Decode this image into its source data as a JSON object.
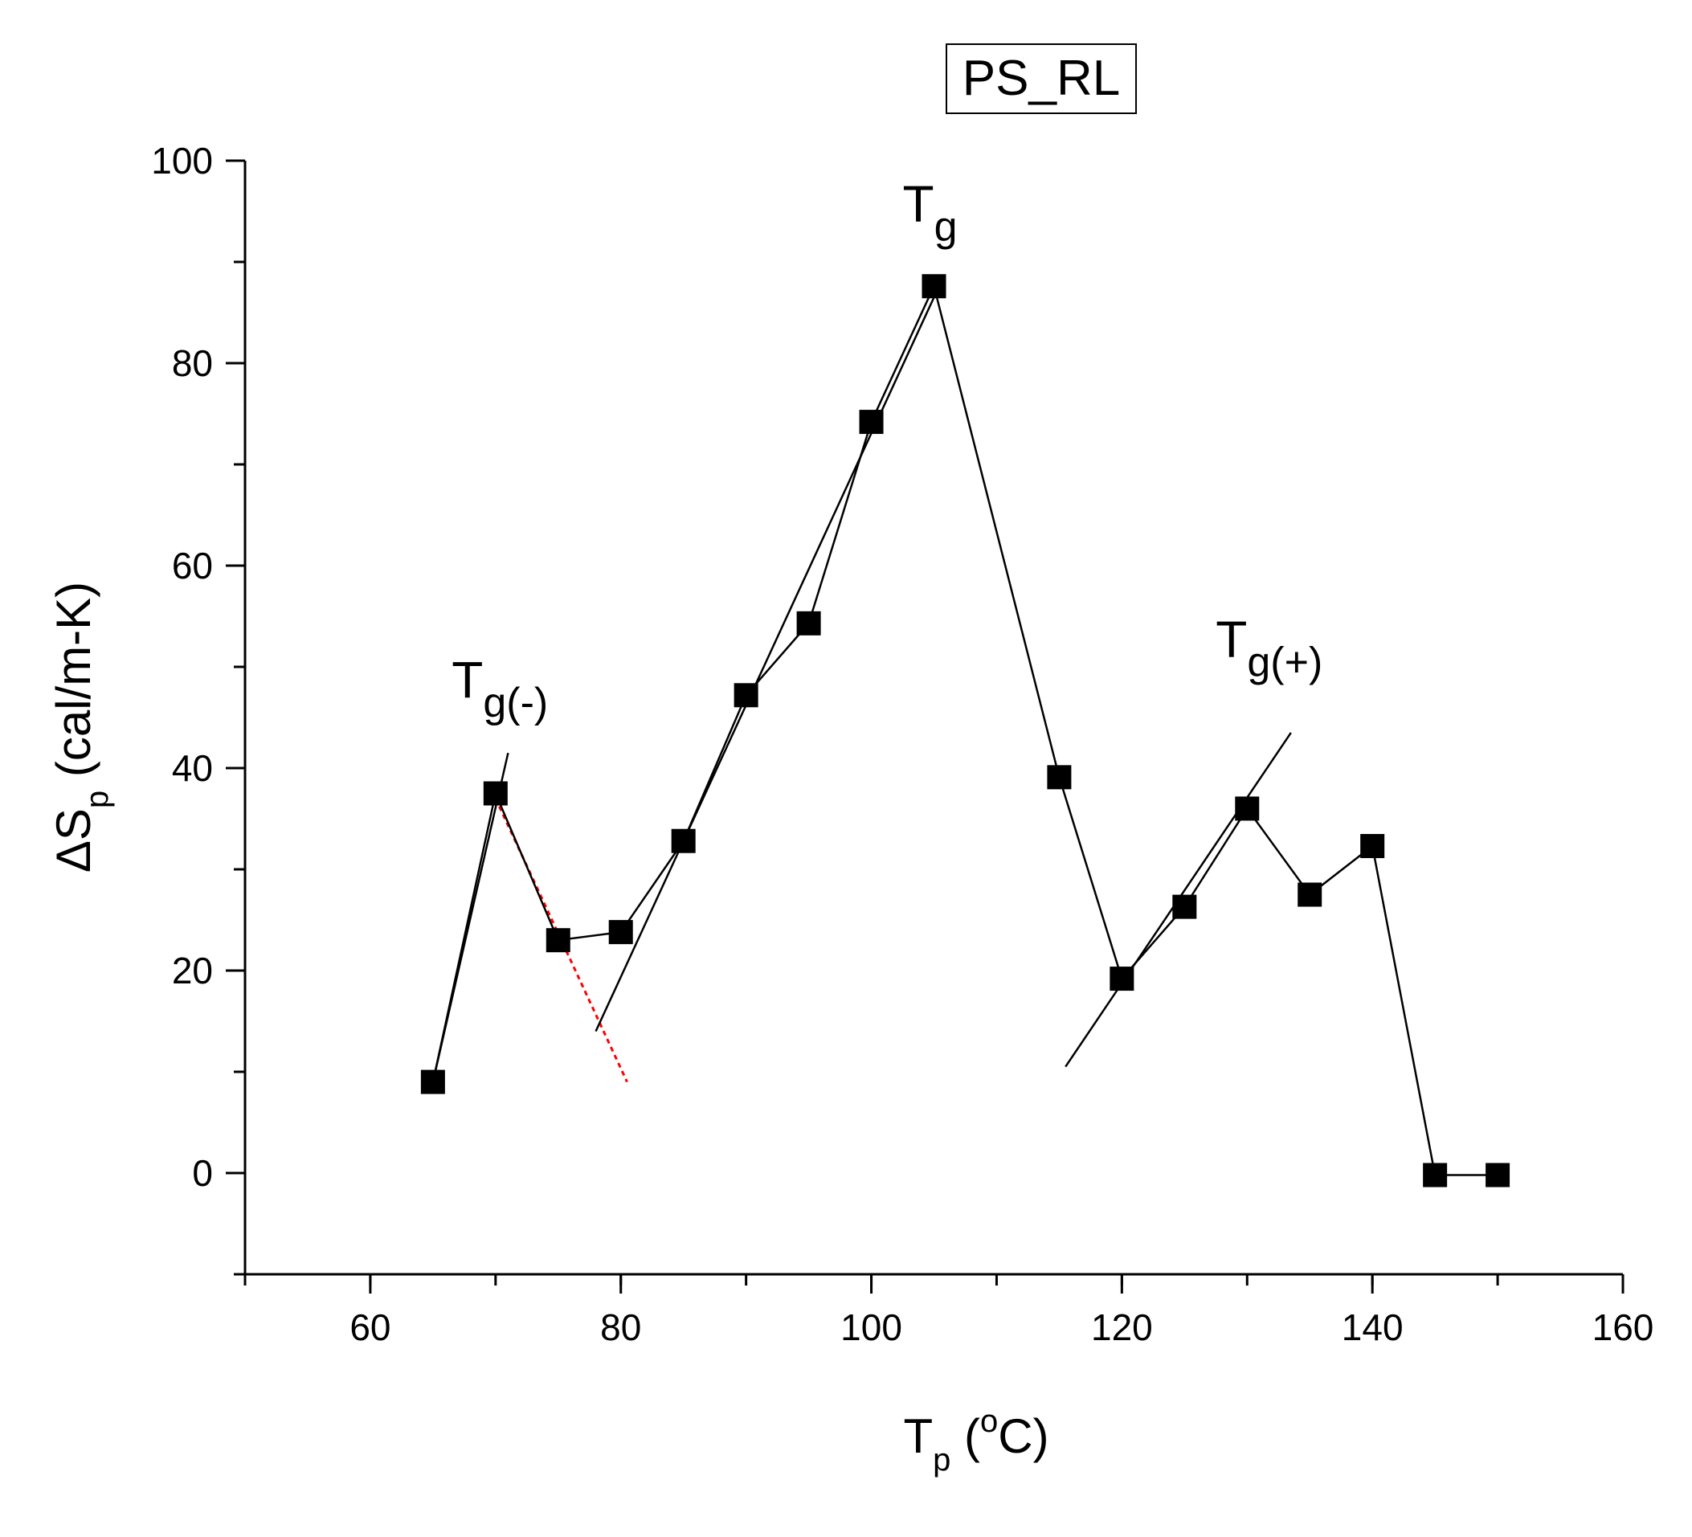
{
  "chart_data": {
    "type": "line",
    "title": "",
    "legend": {
      "label": "PS_RL",
      "position": "top-center"
    },
    "xaxis": {
      "label_main": "T",
      "label_sub": "p",
      "label_mid": " (",
      "label_sup": "o",
      "label_end": "C)",
      "range": [
        50,
        160
      ],
      "ticks": [
        60,
        80,
        100,
        120,
        140,
        160
      ],
      "tick_labels": [
        "60",
        "80",
        "100",
        "120",
        "140",
        "160"
      ],
      "minor_step": 10
    },
    "yaxis": {
      "label_main": "ΔS",
      "label_sub": "p",
      "label_end": " (cal/m-K)",
      "range": [
        -10,
        100
      ],
      "ticks": [
        0,
        20,
        40,
        60,
        80,
        100
      ],
      "tick_labels": [
        "0",
        "20",
        "40",
        "60",
        "80",
        "100"
      ],
      "minor_step": 10
    },
    "grid": false,
    "series": [
      {
        "marker": "square",
        "color": "#000000",
        "x": [
          65,
          70,
          75,
          80,
          85,
          90,
          95,
          100,
          105,
          115,
          120,
          125,
          130,
          135,
          140,
          145,
          150
        ],
        "y": [
          9,
          37.5,
          23,
          23.8,
          32.8,
          47.2,
          54.3,
          74.2,
          87.6,
          39.1,
          19.2,
          26.3,
          36,
          27.5,
          32.3,
          -0.2,
          -0.2
        ]
      }
    ],
    "fit_lines": [
      {
        "x": [
          65,
          71
        ],
        "y": [
          9,
          41.5
        ],
        "color": "#000000",
        "dashed": false
      },
      {
        "x": [
          70,
          80.5
        ],
        "y": [
          37,
          9
        ],
        "color": "#ff0000",
        "dashed": true
      },
      {
        "x": [
          78,
          105
        ],
        "y": [
          14,
          86.5
        ],
        "color": "#000000",
        "dashed": false
      },
      {
        "x": [
          115.5,
          133.5
        ],
        "y": [
          10.5,
          43.5
        ],
        "color": "#000000",
        "dashed": false
      }
    ],
    "annotations": [
      {
        "main": "T",
        "sub": "g(-)",
        "x": 66.5,
        "y": 47
      },
      {
        "main": "T",
        "sub": "g",
        "x": 102.5,
        "y": 94
      },
      {
        "main": "T",
        "sub": "g(+)",
        "x": 127.5,
        "y": 51
      }
    ]
  }
}
